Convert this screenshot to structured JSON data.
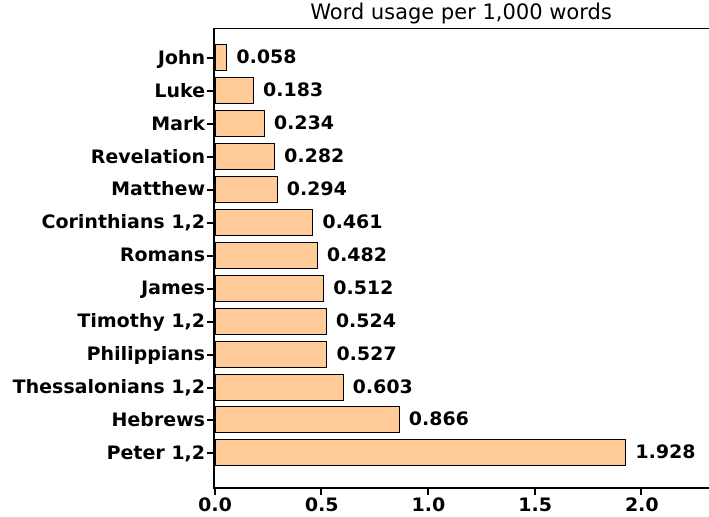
{
  "chart_data": {
    "type": "bar",
    "orientation": "horizontal",
    "title": "Word usage per 1,000 words",
    "xlabel": "",
    "ylabel": "",
    "grid": false,
    "legend": null,
    "background": "#ffffff",
    "bar_color": "#ffcc99",
    "bar_edge_color": "#000000",
    "text_color": "#000000",
    "categories": [
      "John",
      "Luke",
      "Mark",
      "Revelation",
      "Matthew",
      "Corinthians 1,2",
      "Romans",
      "James",
      "Timothy 1,2",
      "Philippians",
      "Thessalonians 1,2",
      "Hebrews",
      "Peter 1,2"
    ],
    "values": [
      0.058,
      0.183,
      0.234,
      0.282,
      0.294,
      0.461,
      0.482,
      0.512,
      0.524,
      0.527,
      0.603,
      0.866,
      1.928
    ],
    "value_labels": [
      "0.058",
      "0.183",
      "0.234",
      "0.282",
      "0.294",
      "0.461",
      "0.482",
      "0.512",
      "0.524",
      "0.527",
      "0.603",
      "0.866",
      "1.928"
    ],
    "xtick_labels": [
      "0.0",
      "0.5",
      "1.0",
      "1.5",
      "2.0"
    ],
    "xtick_values": [
      0.0,
      0.5,
      1.0,
      1.5,
      2.0
    ],
    "xlim": [
      0.0,
      2.32
    ]
  }
}
